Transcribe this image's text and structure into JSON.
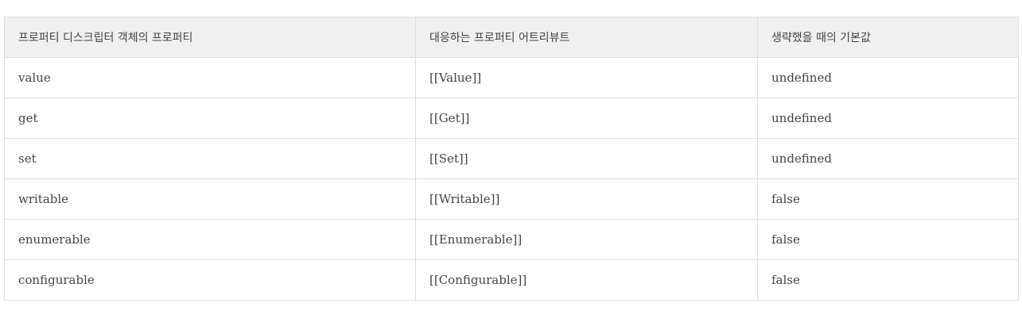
{
  "table": {
    "headers": [
      "프로퍼티 디스크립터 객체의 프로퍼티",
      "대응하는 프로퍼티 어트리뷰트",
      "생략했을 때의 기본값"
    ],
    "rows": [
      [
        "value",
        "[[Value]]",
        "undefined"
      ],
      [
        "get",
        "[[Get]]",
        "undefined"
      ],
      [
        "set",
        "[[Set]]",
        "undefined"
      ],
      [
        "writable",
        "[[Writable]]",
        "false"
      ],
      [
        "enumerable",
        "[[Enumerable]]",
        "false"
      ],
      [
        "configurable",
        "[[Configurable]]",
        "false"
      ]
    ]
  }
}
